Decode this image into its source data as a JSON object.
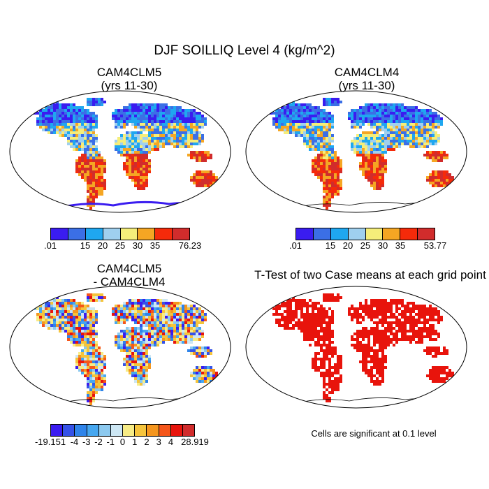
{
  "figure": {
    "title": "DJF SOILLIQ Level 4 (kg/m^2)"
  },
  "panels": [
    {
      "id": "cam4clm5",
      "title_line1": "CAM4CLM5",
      "title_line2": "(yrs 11-30)",
      "colorbar": {
        "colors": [
          "#3a1cf0",
          "#3b6fe6",
          "#1fa7f0",
          "#9fd0ef",
          "#f5ee7a",
          "#f5a623",
          "#f52a0a",
          "#d12c2c"
        ],
        "labels": [
          ".01",
          "15",
          "20",
          "25",
          "30",
          "35",
          "76.23"
        ]
      }
    },
    {
      "id": "cam4clm4",
      "title_line1": "CAM4CLM4",
      "title_line2": "(yrs 11-30)",
      "colorbar": {
        "colors": [
          "#3a1cf0",
          "#3b6fe6",
          "#1fa7f0",
          "#9fd0ef",
          "#f5ee7a",
          "#f5a623",
          "#f52a0a",
          "#d12c2c"
        ],
        "labels": [
          ".01",
          "15",
          "20",
          "25",
          "30",
          "35",
          "53.77"
        ]
      }
    },
    {
      "id": "difference",
      "title_line1": "CAM4CLM5",
      "title_line2": "- CAM4CLM4",
      "colorbar": {
        "colors": [
          "#3a1cf0",
          "#3552e8",
          "#2f84ea",
          "#46a7f0",
          "#8cc9ef",
          "#cde7f4",
          "#f7ec86",
          "#f5c43c",
          "#f5961e",
          "#f5561a",
          "#e8140c",
          "#d12c2c"
        ],
        "labels": [
          "-19.151",
          "-4",
          "-3",
          "-2",
          "-1",
          "0",
          "1",
          "2",
          "3",
          "4",
          "28.919"
        ]
      }
    },
    {
      "id": "ttest",
      "title_line1": "T-Test of two Case means at each grid point",
      "note": "Cells are significant at 0.1 level",
      "significant_color": "#e8140c"
    }
  ]
}
